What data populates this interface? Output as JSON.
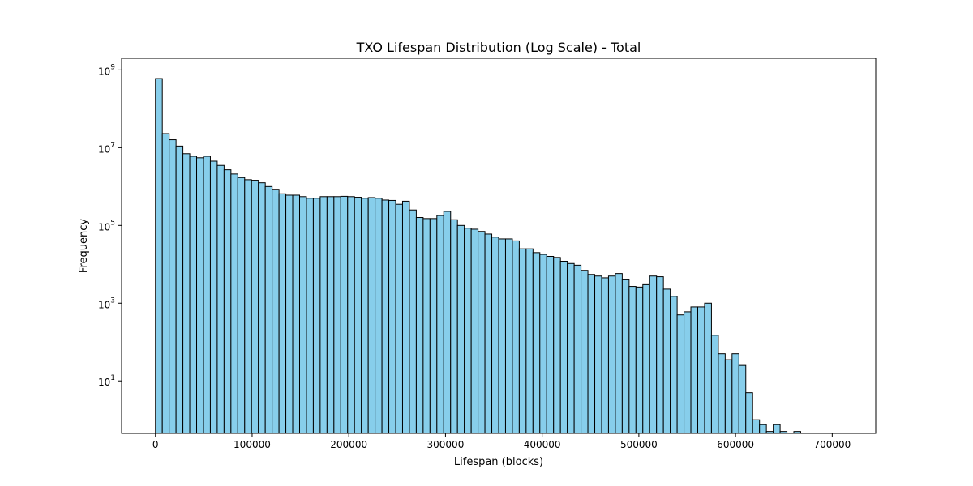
{
  "chart_data": {
    "type": "bar",
    "title": "TXO Lifespan Distribution (Log Scale) - Total",
    "xlabel": "Lifespan (blocks)",
    "ylabel": "Frequency",
    "xlim": [
      -35000,
      745000
    ],
    "ylim_log10": [
      -0.35,
      9.3
    ],
    "yscale": "log",
    "grid": false,
    "bar_color": "#87ceeb",
    "edge_color": "#000000",
    "x_ticks": [
      0,
      100000,
      200000,
      300000,
      400000,
      500000,
      600000,
      700000
    ],
    "x_tick_labels": [
      "0",
      "100000",
      "200000",
      "300000",
      "400000",
      "500000",
      "600000",
      "700000"
    ],
    "y_ticks_exp": [
      1,
      3,
      5,
      7,
      9
    ],
    "y_tick_labels": [
      {
        "base": "10",
        "exp": "1"
      },
      {
        "base": "10",
        "exp": "3"
      },
      {
        "base": "10",
        "exp": "5"
      },
      {
        "base": "10",
        "exp": "7"
      },
      {
        "base": "10",
        "exp": "9"
      }
    ],
    "bin_start": 0,
    "bin_width": 7100,
    "values": [
      600000000,
      23000000,
      16000000,
      11000000,
      7000000,
      6000000,
      5500000,
      6000000,
      4500000,
      3500000,
      2700000,
      2100000,
      1700000,
      1500000,
      1450000,
      1250000,
      1000000,
      850000,
      650000,
      600000,
      600000,
      550000,
      500000,
      500000,
      550000,
      550000,
      550000,
      560000,
      550000,
      530000,
      500000,
      520000,
      500000,
      450000,
      440000,
      350000,
      420000,
      250000,
      160000,
      150000,
      150000,
      180000,
      230000,
      140000,
      100000,
      85000,
      80000,
      70000,
      60000,
      50000,
      45000,
      45000,
      40000,
      25000,
      25000,
      20000,
      18000,
      16000,
      15000,
      12000,
      10500,
      9500,
      7000,
      5500,
      5000,
      4500,
      5000,
      5800,
      4000,
      2700,
      2600,
      3000,
      5000,
      4800,
      2300,
      1500,
      500,
      600,
      800,
      800,
      1000,
      150,
      50,
      35,
      50,
      25,
      5,
      1,
      0.75,
      0.5,
      0.75,
      0.5,
      0,
      0.5,
      0.25
    ],
    "overflow_note": "no"
  }
}
